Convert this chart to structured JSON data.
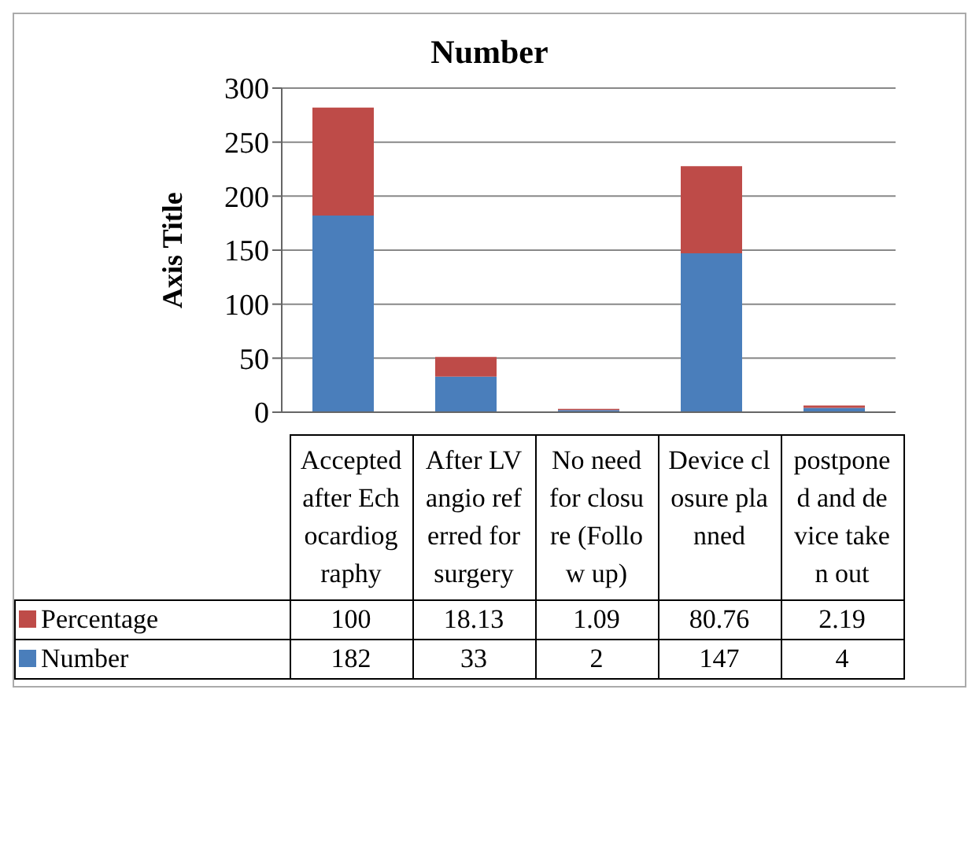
{
  "chart_data": {
    "type": "bar",
    "title": "Number",
    "ylabel": "Axis Title",
    "categories": [
      "Accepted after Echocardiography",
      "After LV angio referred for surgery",
      "No need for closure (Follow up)",
      "Device closure planned",
      "postponed and device taken out"
    ],
    "series": [
      {
        "name": "Number",
        "color": "#4a7ebb",
        "values": [
          182,
          33,
          2,
          147,
          4
        ]
      },
      {
        "name": "Percentage",
        "color": "#be4b48",
        "values": [
          100,
          18.13,
          1.09,
          80.76,
          2.19
        ]
      }
    ],
    "stacked": true,
    "ylim": [
      0,
      300
    ],
    "yticks": [
      0,
      50,
      100,
      150,
      200,
      250,
      300
    ],
    "grid": "y",
    "legend": "bottom",
    "data_labels": true
  }
}
